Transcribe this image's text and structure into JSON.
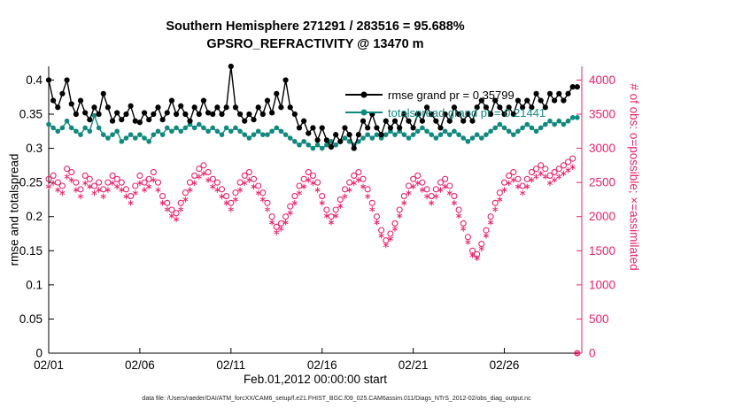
{
  "figure": {
    "title_line1": "Southern Hemisphere 271291 / 283516 = 95.688%",
    "title_line2": "GPSRO_REFRACTIVITY @ 13470 m",
    "xlabel": "Feb.01,2012 00:00:00 start",
    "ylabel_left": "rmse and totalspread",
    "ylabel_right": "# of obs: o=possible; ×=assimilated",
    "caption": "data file: /Users/raeder/DAI/ATM_forcXX/CAM6_setup/f.e21.FHIST_BGC.f09_025.CAM6assim.011/Diags_NTrS_2012-02/obs_diag_output.nc"
  },
  "legend": {
    "rmse_label": "rmse grand pr = 0.35799",
    "totalspread_label": "totalspread grand pr = 0.21441"
  },
  "colors": {
    "rmse": "#000000",
    "totalspread": "#12897e",
    "obs": "#e8246d",
    "axis": "#000000",
    "background": "#ffffff"
  },
  "chart_data": {
    "type": "line",
    "title": "Southern Hemisphere 271291 / 283516 = 95.688% | GPSRO_REFRACTIVITY @ 13470 m",
    "xlabel": "Feb.01,2012 00:00:00 start",
    "ylabel_left": "rmse and totalspread",
    "ylabel_right": "# of obs: o=possible; ×=assimilated",
    "grid": false,
    "legend_position": "upper-right-inside",
    "x_start_day": 0,
    "time_step_days": 0.25,
    "xlim_days": [
      0,
      29.25
    ],
    "xticks_days": [
      0,
      5,
      10,
      15,
      20,
      25
    ],
    "xticklabels": [
      "02/01",
      "02/06",
      "02/11",
      "02/16",
      "02/21",
      "02/26"
    ],
    "ylim_left": [
      0,
      0.42
    ],
    "yticks_left": [
      0,
      0.05,
      0.1,
      0.15,
      0.2,
      0.25,
      0.3,
      0.35,
      0.4
    ],
    "yticklabels_left": [
      "0",
      "0.05",
      "0.1",
      "0.15",
      "0.2",
      "0.25",
      "0.3",
      "0.35",
      "0.4"
    ],
    "ylim_right": [
      0,
      4200
    ],
    "yticks_right": [
      0,
      500,
      1000,
      1500,
      2000,
      2500,
      3000,
      3500,
      4000
    ],
    "yticklabels_right": [
      "0",
      "500",
      "1000",
      "1500",
      "2000",
      "2500",
      "3000",
      "3500",
      "4000"
    ],
    "series": [
      {
        "name": "rmse",
        "axis": "left",
        "marker": "filled-circle",
        "line": true,
        "grand_value": 0.35799,
        "values": [
          0.4,
          0.37,
          0.36,
          0.38,
          0.4,
          0.365,
          0.35,
          0.37,
          0.352,
          0.342,
          0.36,
          0.35,
          0.38,
          0.36,
          0.34,
          0.352,
          0.342,
          0.35,
          0.362,
          0.34,
          0.338,
          0.352,
          0.342,
          0.35,
          0.36,
          0.342,
          0.352,
          0.37,
          0.35,
          0.362,
          0.35,
          0.34,
          0.36,
          0.35,
          0.37,
          0.352,
          0.35,
          0.36,
          0.35,
          0.36,
          0.42,
          0.36,
          0.35,
          0.34,
          0.35,
          0.342,
          0.36,
          0.35,
          0.37,
          0.352,
          0.38,
          0.36,
          0.4,
          0.36,
          0.35,
          0.33,
          0.34,
          0.322,
          0.33,
          0.312,
          0.33,
          0.312,
          0.302,
          0.32,
          0.31,
          0.33,
          0.32,
          0.3,
          0.32,
          0.34,
          0.33,
          0.35,
          0.33,
          0.32,
          0.34,
          0.33,
          0.34,
          0.33,
          0.35,
          0.34,
          0.33,
          0.35,
          0.34,
          0.36,
          0.35,
          0.34,
          0.33,
          0.35,
          0.34,
          0.36,
          0.35,
          0.34,
          0.35,
          0.34,
          0.36,
          0.37,
          0.36,
          0.35,
          0.37,
          0.36,
          0.35,
          0.36,
          0.35,
          0.37,
          0.36,
          0.37,
          0.36,
          0.38,
          0.37,
          0.36,
          0.38,
          0.37,
          0.38,
          0.37,
          0.38,
          0.39,
          0.39
        ]
      },
      {
        "name": "totalspread",
        "axis": "left",
        "marker": "filled-circle",
        "line": true,
        "grand_value": 0.21441,
        "values": [
          0.335,
          0.33,
          0.325,
          0.33,
          0.34,
          0.33,
          0.325,
          0.32,
          0.33,
          0.325,
          0.348,
          0.33,
          0.32,
          0.315,
          0.32,
          0.325,
          0.31,
          0.315,
          0.32,
          0.315,
          0.32,
          0.315,
          0.31,
          0.32,
          0.325,
          0.32,
          0.33,
          0.325,
          0.33,
          0.325,
          0.33,
          0.335,
          0.33,
          0.335,
          0.33,
          0.325,
          0.33,
          0.325,
          0.32,
          0.33,
          0.325,
          0.33,
          0.325,
          0.32,
          0.315,
          0.32,
          0.325,
          0.32,
          0.32,
          0.325,
          0.33,
          0.325,
          0.32,
          0.315,
          0.31,
          0.305,
          0.31,
          0.305,
          0.3,
          0.305,
          0.3,
          0.305,
          0.31,
          0.305,
          0.31,
          0.315,
          0.31,
          0.305,
          0.31,
          0.315,
          0.32,
          0.315,
          0.32,
          0.315,
          0.32,
          0.325,
          0.32,
          0.325,
          0.32,
          0.315,
          0.32,
          0.325,
          0.33,
          0.325,
          0.32,
          0.315,
          0.32,
          0.325,
          0.32,
          0.325,
          0.32,
          0.315,
          0.31,
          0.315,
          0.32,
          0.315,
          0.32,
          0.325,
          0.33,
          0.335,
          0.33,
          0.325,
          0.32,
          0.325,
          0.33,
          0.335,
          0.33,
          0.325,
          0.33,
          0.335,
          0.34,
          0.335,
          0.34,
          0.335,
          0.34,
          0.345,
          0.345
        ]
      },
      {
        "name": "possible",
        "axis": "right",
        "marker": "open-circle",
        "line": false,
        "values": [
          2550,
          2600,
          2500,
          2450,
          2700,
          2650,
          2500,
          2400,
          2600,
          2550,
          2450,
          2500,
          2400,
          2500,
          2600,
          2550,
          2500,
          2400,
          2300,
          2450,
          2600,
          2500,
          2550,
          2650,
          2500,
          2300,
          2200,
          2100,
          2050,
          2200,
          2350,
          2500,
          2600,
          2700,
          2750,
          2650,
          2550,
          2500,
          2400,
          2300,
          2200,
          2350,
          2500,
          2600,
          2650,
          2550,
          2450,
          2350,
          2200,
          2000,
          1850,
          1900,
          2000,
          2150,
          2300,
          2450,
          2550,
          2650,
          2600,
          2500,
          2300,
          2100,
          2000,
          2100,
          2250,
          2400,
          2500,
          2600,
          2650,
          2550,
          2400,
          2200,
          2000,
          1800,
          1650,
          1750,
          1900,
          2100,
          2300,
          2450,
          2550,
          2600,
          2500,
          2400,
          2300,
          2400,
          2500,
          2550,
          2450,
          2300,
          2100,
          1900,
          1700,
          1500,
          1450,
          1600,
          1800,
          2000,
          2200,
          2350,
          2500,
          2600,
          2650,
          2550,
          2450,
          2550,
          2650,
          2700,
          2750,
          2700,
          2600,
          2650,
          2700,
          2750,
          2800,
          2850,
          0
        ]
      },
      {
        "name": "assimilated",
        "axis": "right",
        "marker": "asterisk",
        "line": false,
        "values": [
          2440,
          2490,
          2390,
          2345,
          2585,
          2535,
          2390,
          2295,
          2490,
          2440,
          2345,
          2390,
          2295,
          2390,
          2490,
          2440,
          2390,
          2295,
          2200,
          2345,
          2490,
          2390,
          2440,
          2535,
          2390,
          2200,
          2105,
          2010,
          1960,
          2105,
          2250,
          2390,
          2490,
          2585,
          2630,
          2535,
          2440,
          2390,
          2295,
          2200,
          2105,
          2250,
          2390,
          2490,
          2535,
          2440,
          2345,
          2250,
          2105,
          1915,
          1770,
          1820,
          1915,
          2055,
          2200,
          2345,
          2440,
          2535,
          2490,
          2390,
          2200,
          2010,
          1915,
          2010,
          2155,
          2295,
          2390,
          2490,
          2535,
          2440,
          2295,
          2105,
          1915,
          1720,
          1580,
          1675,
          1820,
          2010,
          2200,
          2345,
          2440,
          2490,
          2390,
          2295,
          2200,
          2295,
          2390,
          2440,
          2345,
          2200,
          2010,
          1820,
          1625,
          1435,
          1390,
          1530,
          1720,
          1915,
          2105,
          2250,
          2390,
          2490,
          2535,
          2440,
          2345,
          2440,
          2535,
          2585,
          2630,
          2585,
          2490,
          2535,
          2585,
          2630,
          2680,
          2725,
          0
        ]
      }
    ]
  }
}
